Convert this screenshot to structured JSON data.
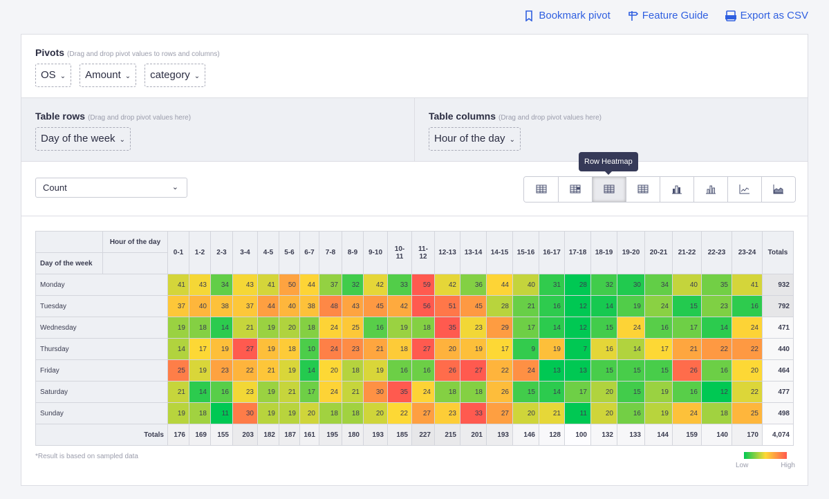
{
  "top_links": [
    {
      "label": "Bookmark pivot",
      "icon": "bookmark-icon"
    },
    {
      "label": "Feature Guide",
      "icon": "signpost-icon"
    },
    {
      "label": "Export as CSV",
      "icon": "csv-icon"
    }
  ],
  "pivots": {
    "title": "Pivots",
    "hint": "(Drag and drop pivot values to rows and columns)",
    "chips": [
      "OS",
      "Amount",
      "category"
    ]
  },
  "rows_zone": {
    "title": "Table rows",
    "hint": "(Drag and drop pivot values here)",
    "chip": "Day of the week"
  },
  "cols_zone": {
    "title": "Table columns",
    "hint": "(Drag and drop pivot values here)",
    "chip": "Hour of the day"
  },
  "metric_select": {
    "value": "Count"
  },
  "view_buttons": [
    "table",
    "table-heatmap",
    "row-heatmap",
    "col-heatmap",
    "stacked-bar",
    "bar",
    "line",
    "area"
  ],
  "active_view": "row-heatmap",
  "tooltip": "Row Heatmap",
  "colors": {
    "low": "#00c853",
    "mid": "#fdd835",
    "high": "#ff5a4f"
  },
  "table": {
    "col_header": "Hour of the day",
    "row_header": "Day of the week",
    "totals_label": "Totals",
    "columns": [
      "0-1",
      "1-2",
      "2-3",
      "3-4",
      "4-5",
      "5-6",
      "6-7",
      "7-8",
      "8-9",
      "9-10",
      "10-11",
      "11-12",
      "12-13",
      "13-14",
      "14-15",
      "15-16",
      "16-17",
      "17-18",
      "18-19",
      "19-20",
      "20-21",
      "21-22",
      "22-23",
      "23-24"
    ],
    "rows": [
      {
        "label": "Monday",
        "values": [
          41,
          43,
          34,
          43,
          41,
          50,
          44,
          37,
          32,
          42,
          33,
          59,
          42,
          36,
          44,
          40,
          31,
          28,
          32,
          30,
          34,
          40,
          35,
          41
        ],
        "total": "932"
      },
      {
        "label": "Tuesday",
        "values": [
          37,
          40,
          38,
          37,
          44,
          40,
          38,
          48,
          43,
          45,
          42,
          56,
          51,
          45,
          28,
          21,
          16,
          12,
          14,
          19,
          24,
          15,
          23,
          16
        ],
        "total": "792"
      },
      {
        "label": "Wednesday",
        "values": [
          19,
          18,
          14,
          21,
          19,
          20,
          18,
          24,
          25,
          16,
          19,
          18,
          35,
          23,
          29,
          17,
          14,
          12,
          15,
          24,
          16,
          17,
          14,
          24
        ],
        "total": "471"
      },
      {
        "label": "Thursday",
        "values": [
          14,
          17,
          19,
          27,
          19,
          18,
          10,
          24,
          23,
          21,
          18,
          27,
          20,
          19,
          17,
          9,
          19,
          7,
          16,
          14,
          17,
          21,
          22,
          22
        ],
        "total": "440"
      },
      {
        "label": "Friday",
        "values": [
          25,
          19,
          23,
          22,
          21,
          19,
          14,
          20,
          18,
          19,
          16,
          16,
          26,
          27,
          22,
          24,
          13,
          13,
          15,
          15,
          15,
          26,
          16,
          20
        ],
        "total": "464"
      },
      {
        "label": "Saturday",
        "values": [
          21,
          14,
          16,
          23,
          19,
          21,
          17,
          24,
          21,
          30,
          35,
          24,
          18,
          18,
          26,
          15,
          14,
          17,
          20,
          15,
          19,
          16,
          12,
          22
        ],
        "total": "477"
      },
      {
        "label": "Sunday",
        "values": [
          19,
          18,
          11,
          30,
          19,
          19,
          20,
          18,
          18,
          20,
          22,
          27,
          23,
          33,
          27,
          20,
          21,
          11,
          20,
          16,
          19,
          24,
          18,
          25
        ],
        "total": "498"
      }
    ],
    "col_totals": [
      "176",
      "169",
      "155",
      "203",
      "182",
      "187",
      "161",
      "195",
      "180",
      "193",
      "185",
      "227",
      "215",
      "201",
      "193",
      "146",
      "128",
      "100",
      "132",
      "133",
      "144",
      "159",
      "140",
      "170"
    ],
    "grand_total": "4,074"
  },
  "note": "*Result is based on sampled data",
  "legend": {
    "low": "Low",
    "high": "High"
  }
}
